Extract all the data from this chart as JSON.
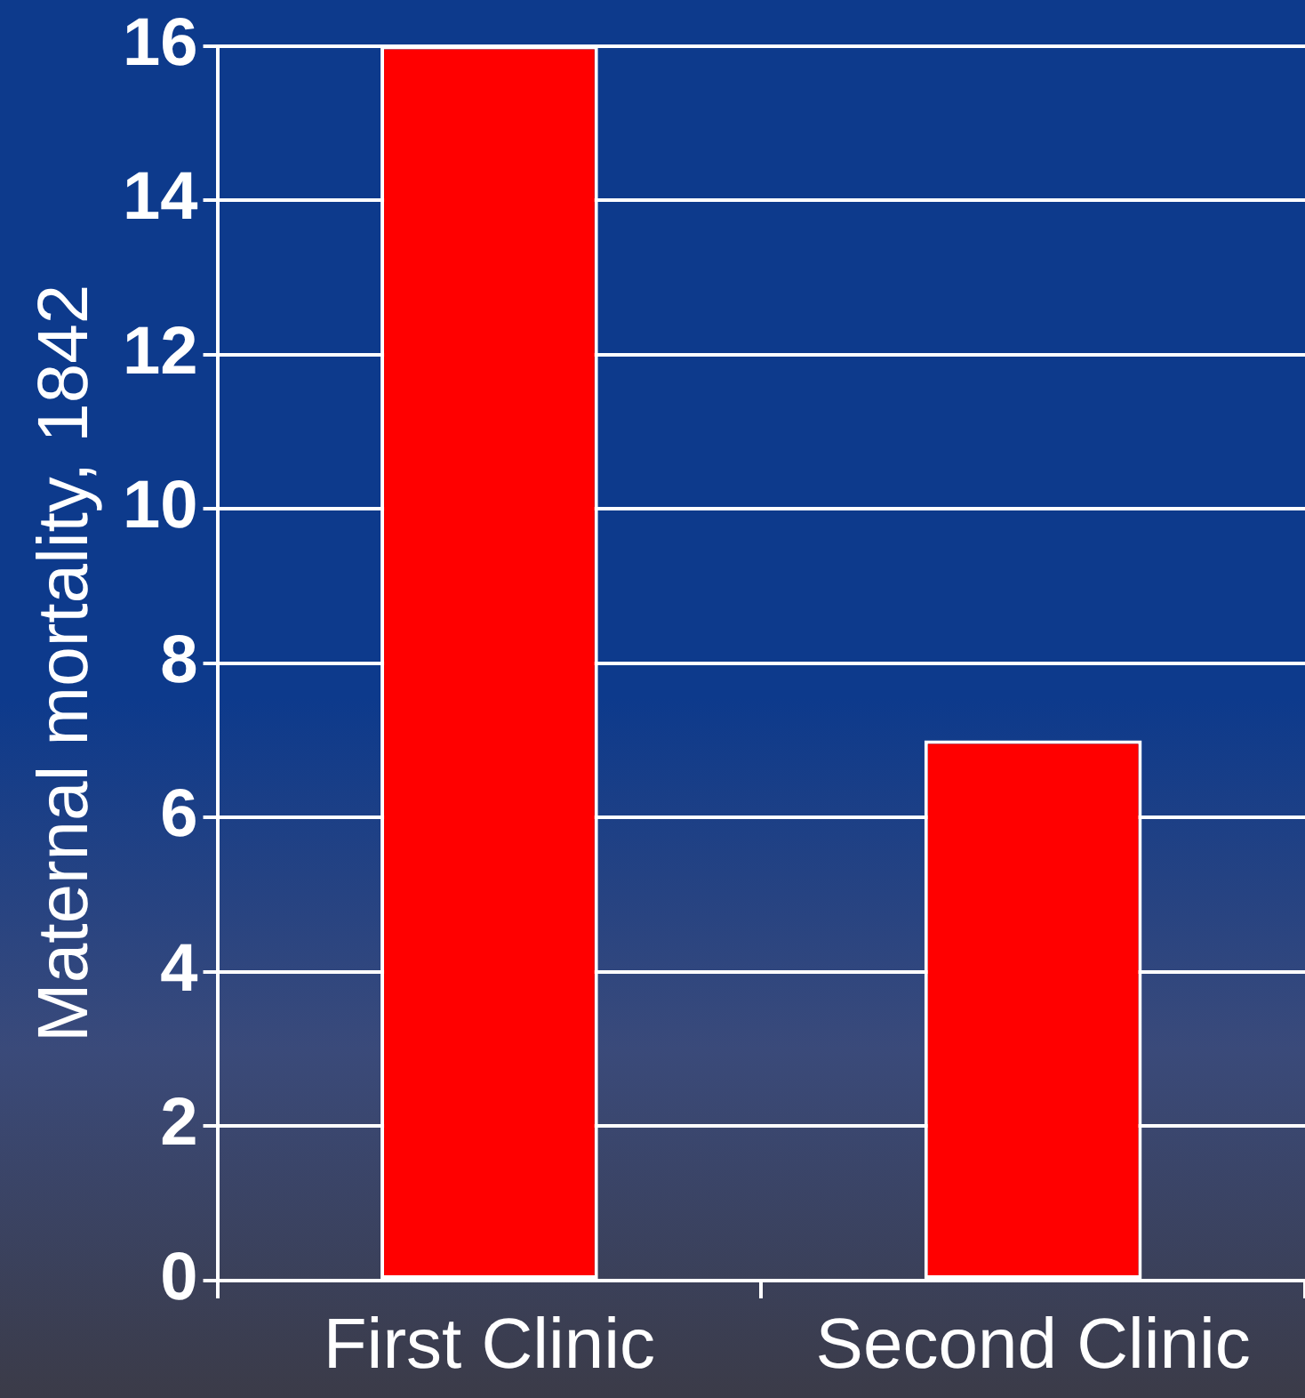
{
  "chart_data": {
    "type": "bar",
    "ylabel": "Maternal mortality, 1842",
    "categories": [
      "First Clinic",
      "Second Clinic"
    ],
    "values": [
      16,
      7
    ],
    "color": "#ff0000",
    "ylim": [
      0,
      16
    ],
    "yticks": [
      0,
      2,
      4,
      6,
      8,
      10,
      12,
      14,
      16
    ],
    "grid": "y"
  }
}
